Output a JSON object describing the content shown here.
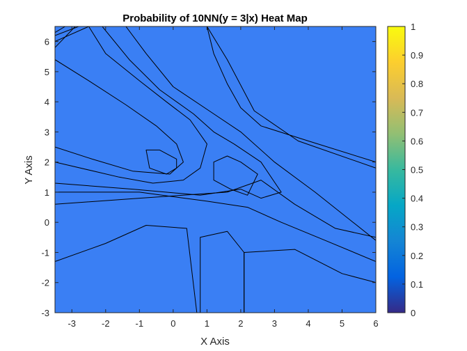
{
  "chart_data": {
    "type": "heatmap",
    "title": "Probability of 10NN(y = 3|x) Heat Map",
    "xlabel": "X Axis",
    "ylabel": "Y Axis",
    "xlim": [
      -3.5,
      6
    ],
    "ylim": [
      -3,
      6.5
    ],
    "x_ticks": [
      -3,
      -2,
      -1,
      0,
      1,
      2,
      3,
      4,
      5,
      6
    ],
    "y_ticks": [
      -3,
      -2,
      -1,
      0,
      1,
      2,
      3,
      4,
      5,
      6
    ],
    "colorbar": {
      "range": [
        0,
        1
      ],
      "ticks": [
        0,
        0.1,
        0.2,
        0.3,
        0.4,
        0.5,
        0.6,
        0.7,
        0.8,
        0.9,
        1
      ],
      "tick_labels": [
        "0",
        "0.1",
        "0.2",
        "0.3",
        "0.4",
        "0.5",
        "0.6",
        "0.7",
        "0.8",
        "0.9",
        "1"
      ],
      "colormap": "parula"
    },
    "levels": [
      0,
      0.1,
      0.2,
      0.3,
      0.4,
      0.5,
      0.6,
      0.7,
      0.8,
      0.9
    ],
    "regions": [
      {
        "level": 0.3,
        "color": "#1e9ae0",
        "points": [
          [
            -3.5,
            5.8
          ],
          [
            -2.9,
            6.5
          ],
          [
            1.0,
            6.5
          ],
          [
            1.6,
            5.4
          ],
          [
            2.4,
            3.7
          ],
          [
            3.7,
            2.7
          ],
          [
            6.0,
            1.8
          ],
          [
            6.0,
            -0.5
          ],
          [
            4.8,
            -0.2
          ],
          [
            3.6,
            0.6
          ],
          [
            2.6,
            1.4
          ],
          [
            1.6,
            1.0
          ],
          [
            -1.0,
            0.8
          ],
          [
            -3.5,
            0.6
          ]
        ]
      },
      {
        "level": 0.5,
        "color": "#12beb9",
        "points": [
          [
            -3.5,
            6.0
          ],
          [
            -2.5,
            6.5
          ],
          [
            -1.4,
            6.5
          ],
          [
            -0.8,
            5.6
          ],
          [
            0.0,
            4.5
          ],
          [
            1.2,
            3.6
          ],
          [
            2.0,
            3.0
          ],
          [
            3.0,
            2.0
          ],
          [
            4.2,
            1.0
          ],
          [
            6.0,
            -0.6
          ],
          [
            6.0,
            -1.3
          ],
          [
            4.5,
            -0.6
          ],
          [
            3.2,
            0.0
          ],
          [
            2.2,
            0.5
          ],
          [
            1.0,
            0.7
          ],
          [
            -1.0,
            1.0
          ],
          [
            -3.5,
            1.0
          ]
        ]
      },
      {
        "level": 0.6,
        "color": "#7cbf4b",
        "points": [
          [
            -3.5,
            6.2
          ],
          [
            -2.8,
            6.5
          ],
          [
            -2.1,
            6.5
          ],
          [
            -1.3,
            5.4
          ],
          [
            -0.4,
            4.4
          ],
          [
            0.6,
            3.6
          ],
          [
            1.2,
            3.0
          ],
          [
            1.8,
            2.6
          ],
          [
            2.6,
            2.0
          ],
          [
            3.2,
            1.0
          ],
          [
            2.6,
            0.8
          ],
          [
            2.0,
            1.1
          ],
          [
            0.8,
            0.9
          ],
          [
            -1.2,
            1.1
          ],
          [
            -3.5,
            1.3
          ]
        ]
      },
      {
        "level": 0.8,
        "color": "#f0b73b",
        "points": [
          [
            -3.5,
            6.3
          ],
          [
            -3.2,
            6.5
          ],
          [
            -2.5,
            6.5
          ],
          [
            -2.0,
            5.6
          ],
          [
            -1.0,
            4.7
          ],
          [
            -0.2,
            4.0
          ],
          [
            0.5,
            3.4
          ],
          [
            1.0,
            2.6
          ],
          [
            0.8,
            1.8
          ],
          [
            0.3,
            1.4
          ],
          [
            -0.6,
            1.3
          ],
          [
            -1.6,
            1.5
          ],
          [
            -3.5,
            2.0
          ]
        ]
      },
      {
        "level": 0.8,
        "color": "#f0b73b",
        "points": [
          [
            1.2,
            2.0
          ],
          [
            1.6,
            2.2
          ],
          [
            2.0,
            2.0
          ],
          [
            2.5,
            1.6
          ],
          [
            2.2,
            0.9
          ],
          [
            1.7,
            1.1
          ],
          [
            1.2,
            1.4
          ]
        ]
      },
      {
        "level": 0.9,
        "color": "#f9d22d",
        "points": [
          [
            -3.5,
            5.4
          ],
          [
            -2.5,
            4.7
          ],
          [
            -1.4,
            3.9
          ],
          [
            -0.5,
            3.2
          ],
          [
            0.1,
            2.6
          ],
          [
            0.3,
            2.0
          ],
          [
            -0.1,
            1.6
          ],
          [
            -1.2,
            1.7
          ],
          [
            -2.4,
            2.1
          ],
          [
            -3.5,
            2.5
          ]
        ]
      },
      {
        "level": 1.0,
        "color": "#f9f91e",
        "points": [
          [
            -0.8,
            2.4
          ],
          [
            -0.4,
            2.4
          ],
          [
            0.1,
            2.1
          ],
          [
            0.1,
            1.8
          ],
          [
            -0.2,
            1.6
          ],
          [
            -0.7,
            1.8
          ]
        ]
      },
      {
        "level": 0.1,
        "color": "#3c3cc2",
        "points": [
          [
            1.0,
            6.5
          ],
          [
            6.0,
            6.5
          ],
          [
            6.0,
            2.0
          ],
          [
            4.0,
            2.7
          ],
          [
            2.6,
            3.2
          ],
          [
            2.0,
            3.8
          ],
          [
            1.6,
            4.6
          ],
          [
            1.2,
            5.6
          ]
        ]
      },
      {
        "level": 0.1,
        "color": "#3c3cc2",
        "points": [
          [
            -3.5,
            -1.3
          ],
          [
            -2.0,
            -0.7
          ],
          [
            -0.8,
            -0.1
          ],
          [
            0.4,
            -0.2
          ],
          [
            0.7,
            -3.0
          ],
          [
            -3.5,
            -3.0
          ]
        ]
      },
      {
        "level": 0.1,
        "color": "#3c3cc2",
        "points": [
          [
            0.8,
            -3.0
          ],
          [
            0.8,
            -0.5
          ],
          [
            1.6,
            -0.3
          ],
          [
            2.1,
            -1.0
          ],
          [
            2.1,
            -3.0
          ]
        ]
      },
      {
        "level": 0.1,
        "color": "#3c3cc2",
        "points": [
          [
            2.1,
            -3.0
          ],
          [
            2.1,
            -1.0
          ],
          [
            3.6,
            -0.9
          ],
          [
            5.0,
            -1.7
          ],
          [
            6.0,
            -2.0
          ],
          [
            6.0,
            -3.0
          ]
        ]
      }
    ]
  }
}
